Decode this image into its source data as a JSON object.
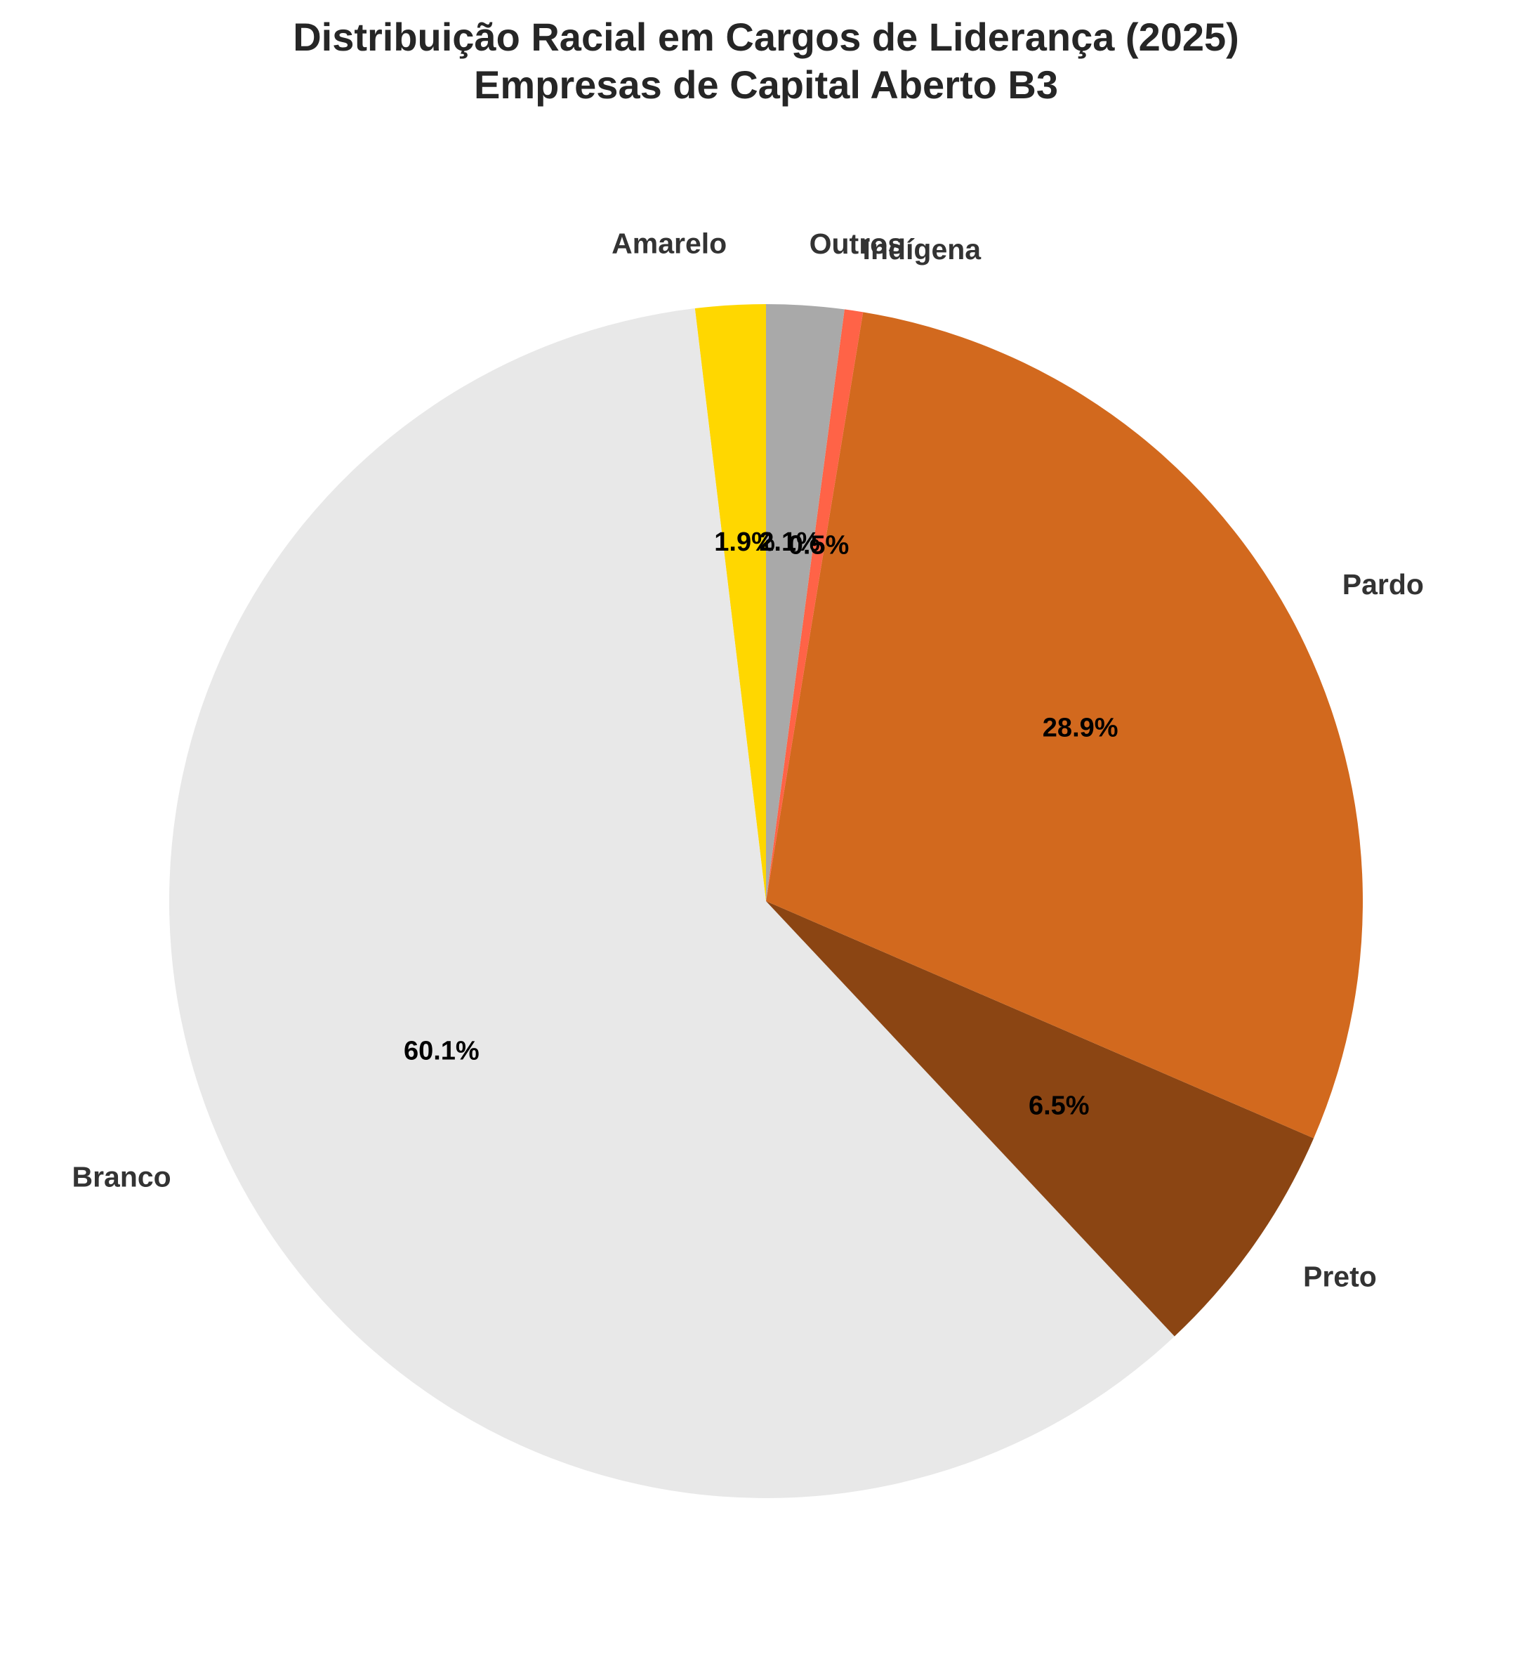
{
  "chart_data": {
    "type": "pie",
    "title": "Distribuição Racial em Cargos de Liderança (2025)",
    "subtitle": "Empresas de Capital Aberto B3",
    "categories": [
      "Amarelo",
      "Branco",
      "Preto",
      "Pardo",
      "Indígena",
      "Outros"
    ],
    "values": [
      1.9,
      60.1,
      6.5,
      28.9,
      0.5,
      2.1
    ],
    "value_labels": [
      "1.9%",
      "60.1%",
      "6.5%",
      "28.9%",
      "0.5%",
      "2.1%"
    ],
    "colors": [
      "#FFD700",
      "#E8E8E8",
      "#8B4513",
      "#D2691E",
      "#FF6347",
      "#A9A9A9"
    ],
    "start_angle_deg": 90,
    "direction": "counterclockwise",
    "legend": "none"
  }
}
